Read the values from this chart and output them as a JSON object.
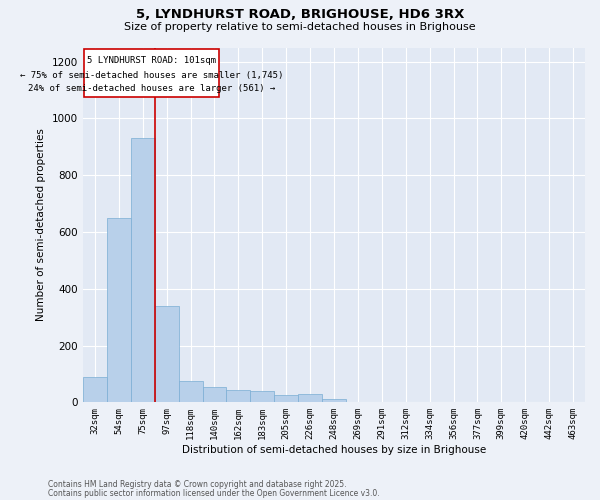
{
  "title1": "5, LYNDHURST ROAD, BRIGHOUSE, HD6 3RX",
  "title2": "Size of property relative to semi-detached houses in Brighouse",
  "xlabel": "Distribution of semi-detached houses by size in Brighouse",
  "ylabel": "Number of semi-detached properties",
  "categories": [
    "32sqm",
    "54sqm",
    "75sqm",
    "97sqm",
    "118sqm",
    "140sqm",
    "162sqm",
    "183sqm",
    "205sqm",
    "226sqm",
    "248sqm",
    "269sqm",
    "291sqm",
    "312sqm",
    "334sqm",
    "356sqm",
    "377sqm",
    "399sqm",
    "420sqm",
    "442sqm",
    "463sqm"
  ],
  "values": [
    90,
    650,
    930,
    340,
    75,
    55,
    45,
    40,
    25,
    30,
    12,
    0,
    0,
    0,
    0,
    0,
    0,
    0,
    0,
    0,
    0
  ],
  "bar_color": "#b8d0ea",
  "bar_edge_color": "#7aadd4",
  "red_line_x": 2.5,
  "red_line_label": "5 LYNDHURST ROAD: 101sqm",
  "smaller_pct": "75%",
  "smaller_count": "1,745",
  "larger_pct": "24%",
  "larger_count": "561",
  "ylim": [
    0,
    1250
  ],
  "yticks": [
    0,
    200,
    400,
    600,
    800,
    1000,
    1200
  ],
  "annotation_box_color": "#ffffff",
  "annotation_border_color": "#cc0000",
  "footer1": "Contains HM Land Registry data © Crown copyright and database right 2025.",
  "footer2": "Contains public sector information licensed under the Open Government Licence v3.0.",
  "bg_color": "#edf1f8",
  "plot_bg_color": "#e2e9f4"
}
